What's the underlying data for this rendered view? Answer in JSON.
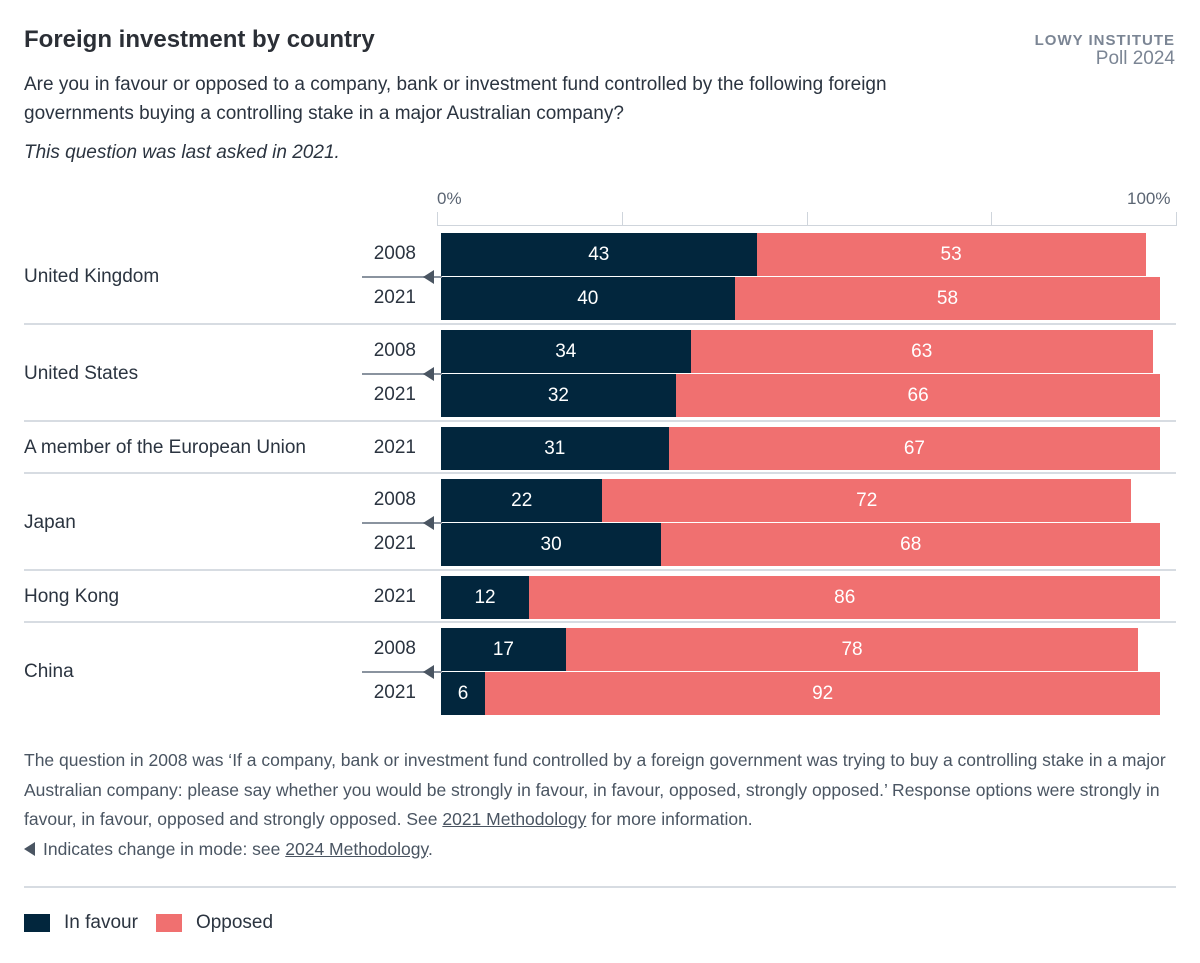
{
  "header": {
    "title": "Foreign investment by country",
    "brand_line1": "LOWY INSTITUTE",
    "brand_line2": "Poll 2024",
    "subtitle": "Are you in favour or opposed to a company, bank or investment fund controlled by the following foreign governments buying a controlling stake in a major Australian company?",
    "note": "This question was last asked in 2021."
  },
  "colors": {
    "in_favour": "#02263d",
    "opposed": "#f07070"
  },
  "chart_data": {
    "type": "bar",
    "orientation": "horizontal-stacked",
    "xlim": [
      0,
      100
    ],
    "x_tick_labels": [
      "0%",
      "100%"
    ],
    "grid": true,
    "legend_placement": "bottom-left",
    "series_names": [
      "In favour",
      "Opposed"
    ],
    "groups": [
      {
        "country": "United Kingdom",
        "mode_change": true,
        "rows": [
          {
            "year": "2008",
            "in_favour": 43,
            "opposed": 53
          },
          {
            "year": "2021",
            "in_favour": 40,
            "opposed": 58
          }
        ]
      },
      {
        "country": "United States",
        "mode_change": true,
        "rows": [
          {
            "year": "2008",
            "in_favour": 34,
            "opposed": 63
          },
          {
            "year": "2021",
            "in_favour": 32,
            "opposed": 66
          }
        ]
      },
      {
        "country": "A member of the European Union",
        "mode_change": false,
        "rows": [
          {
            "year": "2021",
            "in_favour": 31,
            "opposed": 67
          }
        ]
      },
      {
        "country": "Japan",
        "mode_change": true,
        "rows": [
          {
            "year": "2008",
            "in_favour": 22,
            "opposed": 72
          },
          {
            "year": "2021",
            "in_favour": 30,
            "opposed": 68
          }
        ]
      },
      {
        "country": "Hong Kong",
        "mode_change": false,
        "rows": [
          {
            "year": "2021",
            "in_favour": 12,
            "opposed": 86
          }
        ]
      },
      {
        "country": "China",
        "mode_change": true,
        "rows": [
          {
            "year": "2008",
            "in_favour": 17,
            "opposed": 78
          },
          {
            "year": "2021",
            "in_favour": 6,
            "opposed": 92
          }
        ]
      }
    ]
  },
  "footer": {
    "text1": "The question in 2008 was ‘If a company, bank or investment fund controlled by a foreign government was trying to buy a controlling stake in a major Australian company: please say whether you would be strongly in favour, in favour, opposed, strongly opposed.’ Response options were strongly in favour, in favour, opposed and strongly opposed. See ",
    "link1": "2021 Methodology",
    "text2": " for more information.",
    "mode_note": "Indicates change in mode: see ",
    "link2": "2024 Methodology",
    "text3": "."
  },
  "legend": {
    "in_favour": "In favour",
    "opposed": "Opposed"
  }
}
